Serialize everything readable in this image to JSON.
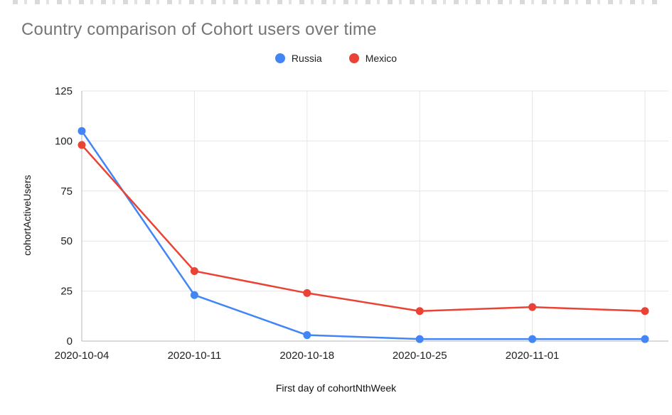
{
  "chart_data": {
    "type": "line",
    "title": "Country comparison of Cohort users over time",
    "xlabel": "First day of cohortNthWeek",
    "ylabel": "cohortActiveUsers",
    "x_labels": [
      "2020-10-04",
      "2020-10-11",
      "2020-10-18",
      "2020-10-25",
      "2020-11-01",
      ""
    ],
    "series": [
      {
        "name": "Russia",
        "color": "#4285F4",
        "values": [
          105,
          23,
          3,
          1,
          1,
          1
        ]
      },
      {
        "name": "Mexico",
        "color": "#EA4335",
        "values": [
          98,
          35,
          24,
          15,
          17,
          15
        ]
      }
    ],
    "ylim": [
      0,
      125
    ],
    "yticks": [
      0,
      25,
      50,
      75,
      100,
      125
    ],
    "grid": true,
    "legend_position": "top-center",
    "grid_color": "#e6e6e6",
    "axis_color": "#b7b7b7"
  }
}
